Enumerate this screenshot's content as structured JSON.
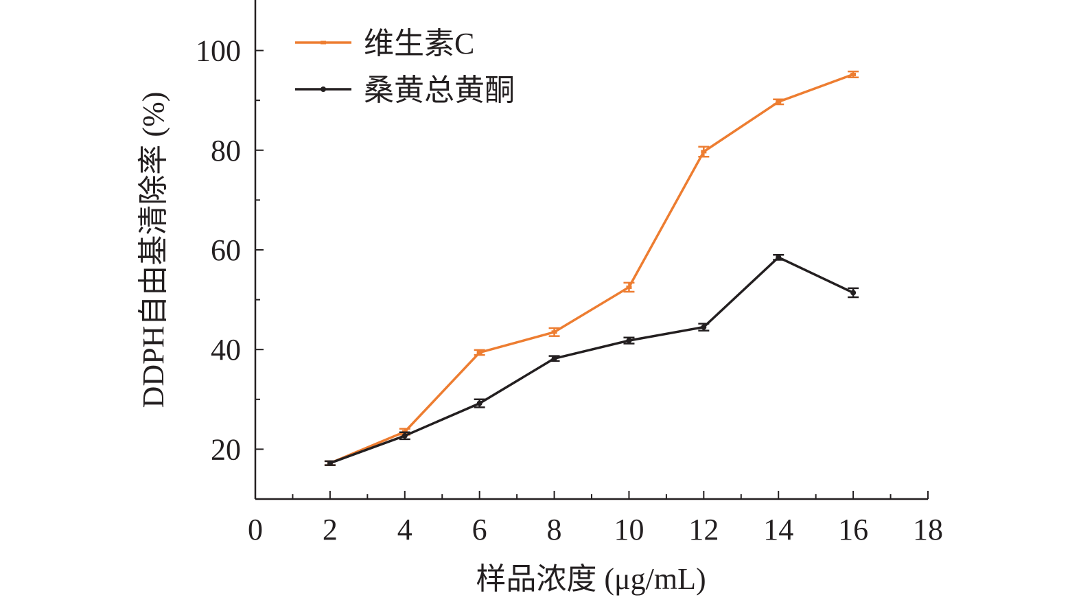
{
  "chart_data": {
    "type": "line",
    "title": "",
    "xlabel": "样品浓度 (μg/mL)",
    "ylabel": "DDPH自由基清除率 (%)",
    "xlim": [
      0,
      18
    ],
    "ylim": [
      10,
      110
    ],
    "xticks": [
      0,
      2,
      4,
      6,
      8,
      10,
      12,
      14,
      16,
      18
    ],
    "yticks": [
      20,
      40,
      60,
      80,
      100
    ],
    "grid": false,
    "legend_position": "top-left",
    "x": [
      2,
      4,
      6,
      8,
      10,
      12,
      14,
      16
    ],
    "series": [
      {
        "name": "维生素C",
        "color": "#ed7d31",
        "marker": "dash",
        "values": [
          17.2,
          23.5,
          39.4,
          43.5,
          52.5,
          79.7,
          89.7,
          95.2
        ],
        "errors": [
          0.4,
          0.6,
          0.5,
          0.8,
          0.9,
          1.0,
          0.5,
          0.6
        ]
      },
      {
        "name": "桑黄总黄酮",
        "color": "#231f20",
        "marker": "dot",
        "values": [
          17.2,
          22.7,
          29.2,
          38.2,
          41.8,
          44.5,
          58.5,
          51.4
        ],
        "errors": [
          0.4,
          0.7,
          0.8,
          0.5,
          0.6,
          0.7,
          0.5,
          0.9
        ]
      }
    ]
  }
}
